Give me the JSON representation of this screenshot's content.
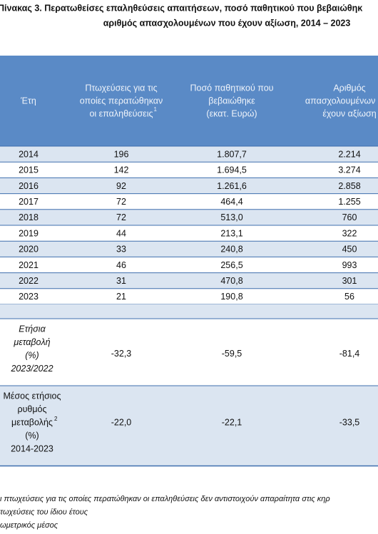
{
  "header": {
    "title": [
      "Πίνακας 3. Περατωθείσες επαληθεύσεις απαιτήσεων, ποσό παθητικού που βεβαιώθηκ",
      "αριθμός απασχολουμένων που έχουν αξίωση, 2014 – 2023"
    ]
  },
  "table": {
    "headers": [
      {
        "lines": [
          "Έτη"
        ]
      },
      {
        "lines": [
          "Πτωχεύσεις για τις",
          "οποίες περατώθηκαν",
          "οι επαληθεύσεις"
        ],
        "sup": "1"
      },
      {
        "lines": [
          "Ποσό παθητικού που",
          "βεβαιώθηκε",
          "(εκατ. Ευρώ)"
        ]
      },
      {
        "lines": [
          "Αριθμός",
          "απασχολουμένων που",
          "έχουν αξίωση"
        ]
      }
    ],
    "rows": [
      [
        "2014",
        "196",
        "1.807,7",
        "2.214"
      ],
      [
        "2015",
        "142",
        "1.694,5",
        "3.274"
      ],
      [
        "2016",
        "92",
        "1.261,6",
        "2.858"
      ],
      [
        "2017",
        "72",
        "464,4",
        "1.255"
      ],
      [
        "2018",
        "72",
        "513,0",
        "760"
      ],
      [
        "2019",
        "44",
        "213,1",
        "322"
      ],
      [
        "2020",
        "33",
        "240,8",
        "450"
      ],
      [
        "2021",
        "46",
        "256,5",
        "993"
      ],
      [
        "2022",
        "31",
        "470,8",
        "301"
      ],
      [
        "2023",
        "21",
        "190,8",
        "56"
      ]
    ],
    "summary": [
      {
        "label": [
          "Ετήσια",
          "μεταβολή",
          "(%)",
          "2023/2022"
        ],
        "values": [
          "-32,3",
          "-59,5",
          "-81,4"
        ]
      },
      {
        "label": [
          "Μέσος ετήσιος",
          "ρυθμός",
          "μεταβολής",
          "(%)",
          "2014-2023"
        ],
        "sup": "2",
        "values": [
          "-22,0",
          "-22,1",
          "-33,5"
        ]
      }
    ]
  },
  "footnotes": [
    "ι πτωχεύσεις για τις οποίες περατώθηκαν οι επαληθεύσεις δεν αντιστοιχούν απαραίτητα στις κηρ",
    "τωχεύσεις του ίδιου έτους",
    "ωμετρικός μέσος"
  ]
}
